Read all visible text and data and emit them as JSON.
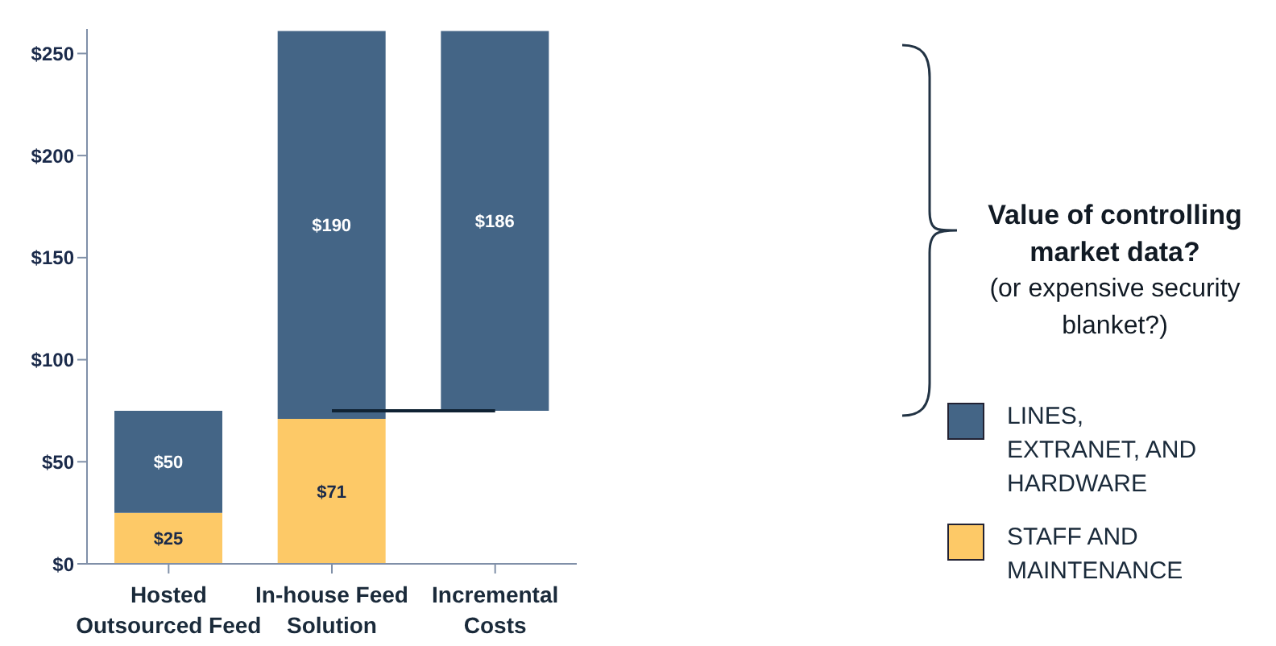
{
  "chart_data": {
    "type": "bar",
    "stacked": true,
    "categories": [
      "Hosted Outsourced Feed",
      "In-house Feed Solution",
      "Incremental Costs"
    ],
    "series": [
      {
        "name": "STAFF AND MAINTENANCE",
        "color": "#fdc967",
        "values": [
          25,
          71,
          null
        ],
        "value_labels": [
          "$25",
          "$71",
          null
        ]
      },
      {
        "name": "LINES, EXTRANET, AND HARDWARE",
        "color": "#446586",
        "base": [
          null,
          null,
          75
        ],
        "values": [
          50,
          190,
          186
        ],
        "value_labels": [
          "$50",
          "$190",
          "$186"
        ]
      },
      {
        "type": "line",
        "color": "#0f2233",
        "values": [
          null,
          75,
          75
        ],
        "marker": "none"
      }
    ],
    "ylim": [
      0,
      262
    ],
    "yticks": [
      {
        "value": 0,
        "label": "$0"
      },
      {
        "value": 50,
        "label": "$50"
      },
      {
        "value": 100,
        "label": "$100"
      },
      {
        "value": 150,
        "label": "$150"
      },
      {
        "value": 200,
        "label": "$200"
      },
      {
        "value": 250,
        "label": "$250"
      }
    ],
    "grid": false,
    "legend": "right",
    "annotations": [
      "Value of controlling market data?",
      "(or expensive security blanket?)"
    ]
  }
}
